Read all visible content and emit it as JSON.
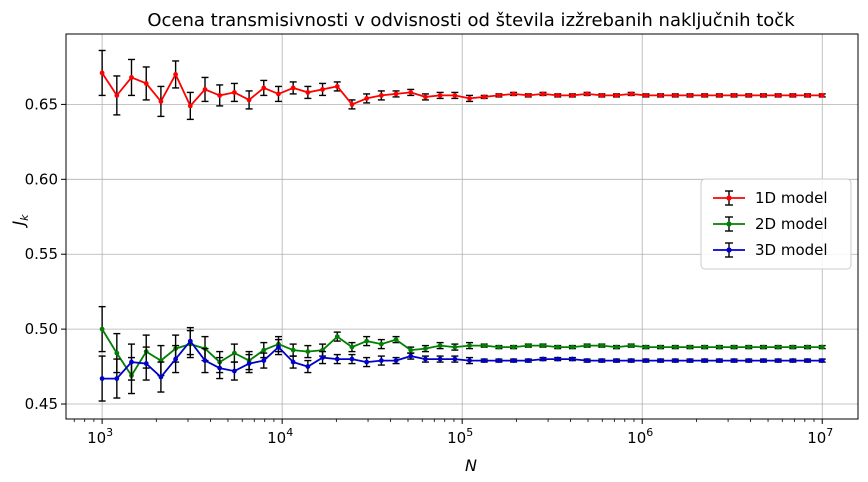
{
  "chart_data": {
    "type": "line",
    "title": "Ocena transmisivnosti v odvisnosti od števila izžrebanih naključnih točk",
    "xlabel": "N",
    "ylabel": "J",
    "ylabel_subscript": "k",
    "xscale": "log",
    "xlim": [
      630,
      15800000
    ],
    "ylim": [
      0.44,
      0.697
    ],
    "grid": true,
    "legend_position": "center-right",
    "x_tick_labels": [
      {
        "base": "10",
        "exp": "3",
        "value": 1000
      },
      {
        "base": "10",
        "exp": "4",
        "value": 10000
      },
      {
        "base": "10",
        "exp": "5",
        "value": 100000
      },
      {
        "base": "10",
        "exp": "6",
        "value": 1000000
      },
      {
        "base": "10",
        "exp": "7",
        "value": 10000000
      }
    ],
    "y_tick_labels": [
      "0.45",
      "0.50",
      "0.55",
      "0.60",
      "0.65"
    ],
    "y_ticks": [
      0.45,
      0.5,
      0.55,
      0.6,
      0.65
    ],
    "x": [
      1000,
      1207,
      1456,
      1758,
      2121,
      2560,
      3089,
      3728,
      4498,
      5429,
      6551,
      7906,
      9541,
      11514,
      13895,
      16768,
      20236,
      24421,
      29471,
      35565,
      42919,
      51795,
      62506,
      75431,
      91030,
      109854,
      132571,
      159986,
      193070,
      232995,
      281177,
      339322,
      409492,
      494171,
      596362,
      719686,
      868511,
      1048113,
      1264855,
      1526418,
      1842070,
      2222996,
      2682695,
      3237458,
      3906940,
      4714866,
      5689866,
      6866488,
      8286428,
      10000000
    ],
    "series": [
      {
        "name": "1D model",
        "color": "#ff0000",
        "y": [
          0.671,
          0.656,
          0.668,
          0.664,
          0.652,
          0.67,
          0.649,
          0.66,
          0.656,
          0.658,
          0.653,
          0.661,
          0.657,
          0.661,
          0.658,
          0.66,
          0.662,
          0.65,
          0.654,
          0.656,
          0.657,
          0.658,
          0.655,
          0.656,
          0.656,
          0.654,
          0.655,
          0.656,
          0.657,
          0.656,
          0.657,
          0.656,
          0.656,
          0.657,
          0.656,
          0.656,
          0.657,
          0.656,
          0.656,
          0.656,
          0.656,
          0.656,
          0.656,
          0.656,
          0.656,
          0.656,
          0.656,
          0.656,
          0.656,
          0.656
        ],
        "err": [
          0.015,
          0.013,
          0.012,
          0.011,
          0.01,
          0.009,
          0.009,
          0.008,
          0.007,
          0.006,
          0.006,
          0.005,
          0.005,
          0.004,
          0.004,
          0.004,
          0.003,
          0.003,
          0.003,
          0.003,
          0.002,
          0.002,
          0.002,
          0.002,
          0.002,
          0.002,
          0.001,
          0.001,
          0.001,
          0.001,
          0.001,
          0.001,
          0.001,
          0.001,
          0.001,
          0.001,
          0.001,
          0.001,
          0.001,
          0.001,
          0.001,
          0.001,
          0.001,
          0.001,
          0.001,
          0.001,
          0.001,
          0.001,
          0.001,
          0.001
        ]
      },
      {
        "name": "2D model",
        "color": "#008000",
        "y": [
          0.5,
          0.484,
          0.469,
          0.485,
          0.479,
          0.487,
          0.49,
          0.487,
          0.478,
          0.484,
          0.479,
          0.486,
          0.49,
          0.486,
          0.485,
          0.486,
          0.495,
          0.488,
          0.492,
          0.49,
          0.493,
          0.486,
          0.487,
          0.489,
          0.488,
          0.489,
          0.489,
          0.488,
          0.488,
          0.489,
          0.489,
          0.488,
          0.488,
          0.489,
          0.489,
          0.488,
          0.489,
          0.488,
          0.488,
          0.488,
          0.488,
          0.488,
          0.488,
          0.488,
          0.488,
          0.488,
          0.488,
          0.488,
          0.488,
          0.488
        ],
        "err": [
          0.015,
          0.013,
          0.012,
          0.011,
          0.01,
          0.009,
          0.009,
          0.008,
          0.007,
          0.006,
          0.006,
          0.005,
          0.005,
          0.004,
          0.004,
          0.004,
          0.003,
          0.003,
          0.003,
          0.003,
          0.002,
          0.002,
          0.002,
          0.002,
          0.002,
          0.002,
          0.001,
          0.001,
          0.001,
          0.001,
          0.001,
          0.001,
          0.001,
          0.001,
          0.001,
          0.001,
          0.001,
          0.001,
          0.001,
          0.001,
          0.001,
          0.001,
          0.001,
          0.001,
          0.001,
          0.001,
          0.001,
          0.001,
          0.001,
          0.001
        ]
      },
      {
        "name": "3D model",
        "color": "#0000cc",
        "y": [
          0.467,
          0.467,
          0.478,
          0.477,
          0.468,
          0.48,
          0.492,
          0.479,
          0.474,
          0.472,
          0.477,
          0.479,
          0.488,
          0.478,
          0.475,
          0.481,
          0.48,
          0.48,
          0.478,
          0.479,
          0.479,
          0.482,
          0.48,
          0.48,
          0.48,
          0.479,
          0.479,
          0.479,
          0.479,
          0.479,
          0.48,
          0.48,
          0.48,
          0.479,
          0.479,
          0.479,
          0.479,
          0.479,
          0.479,
          0.479,
          0.479,
          0.479,
          0.479,
          0.479,
          0.479,
          0.479,
          0.479,
          0.479,
          0.479,
          0.479
        ],
        "err": [
          0.015,
          0.013,
          0.012,
          0.011,
          0.01,
          0.009,
          0.009,
          0.008,
          0.007,
          0.006,
          0.006,
          0.005,
          0.005,
          0.004,
          0.004,
          0.004,
          0.003,
          0.003,
          0.003,
          0.003,
          0.002,
          0.002,
          0.002,
          0.002,
          0.002,
          0.002,
          0.001,
          0.001,
          0.001,
          0.001,
          0.001,
          0.001,
          0.001,
          0.001,
          0.001,
          0.001,
          0.001,
          0.001,
          0.001,
          0.001,
          0.001,
          0.001,
          0.001,
          0.001,
          0.001,
          0.001,
          0.001,
          0.001,
          0.001,
          0.001
        ]
      }
    ],
    "errorbar_color": "#000000",
    "grid_color": "#b0b0b0"
  }
}
